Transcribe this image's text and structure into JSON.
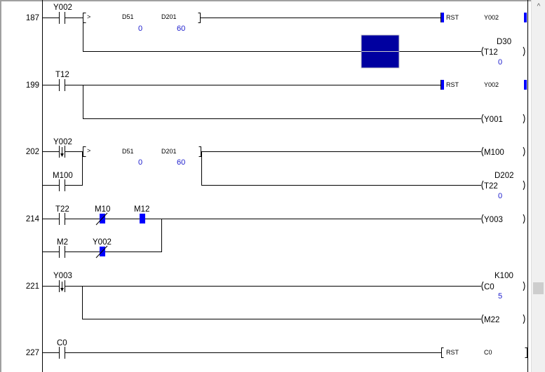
{
  "colors": {
    "monitor_on": "#0000ff",
    "value_text": "#1a1acc",
    "highlight_block": "#0000a0"
  },
  "rungs": {
    "r187": {
      "step": "187",
      "contact": "Y002",
      "cmp_op": ">",
      "cmp_a": "D51",
      "cmp_a_val": "0",
      "cmp_b": "D201",
      "cmp_b_val": "60",
      "rst_label": "RST",
      "rst_dev": "Y002",
      "coil": "T12",
      "coil_set": "D30",
      "coil_val": "0"
    },
    "r199": {
      "step": "199",
      "contact": "T12",
      "rst_label": "RST",
      "rst_dev": "Y002",
      "coil": "Y001"
    },
    "r202": {
      "step": "202",
      "contact": "Y002",
      "contact2": "M100",
      "cmp_op": ">",
      "cmp_a": "D51",
      "cmp_a_val": "0",
      "cmp_b": "D201",
      "cmp_b_val": "60",
      "coil": "M100",
      "coil2": "T22",
      "coil2_set": "D202",
      "coil2_val": "0"
    },
    "r214": {
      "step": "214",
      "c1": "T22",
      "c2": "M10",
      "c3": "M12",
      "c4": "M2",
      "c5": "Y002",
      "coil": "Y003"
    },
    "r221": {
      "step": "221",
      "contact": "Y003",
      "coil": "C0",
      "coil_set": "K100",
      "coil_val": "5",
      "coil2": "M22"
    },
    "r227": {
      "step": "227",
      "contact": "C0",
      "rst_label": "RST",
      "rst_dev": "C0"
    }
  },
  "scrollbar": {
    "up_icon": "chevron-up-icon"
  }
}
